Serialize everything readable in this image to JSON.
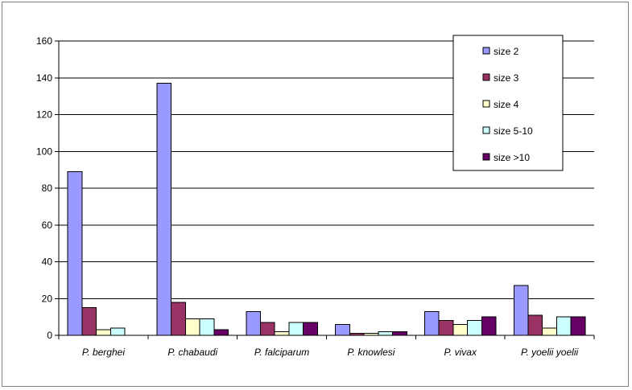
{
  "chart_data": {
    "type": "bar",
    "categories": [
      "P. berghei",
      "P. chabaudi",
      "P. falciparum",
      "P. knowlesi",
      "P. vivax",
      "P. yoelii yoelii"
    ],
    "series": [
      {
        "name": "size 2",
        "color": "#9999ff",
        "values": [
          89,
          137,
          13,
          6,
          13,
          27
        ]
      },
      {
        "name": "size 3",
        "color": "#993366",
        "values": [
          15,
          18,
          7,
          1,
          8,
          11
        ]
      },
      {
        "name": "size 4",
        "color": "#ffffcc",
        "values": [
          3,
          9,
          2,
          1,
          6,
          4
        ]
      },
      {
        "name": "size 5-10",
        "color": "#ccffff",
        "values": [
          4,
          9,
          7,
          2,
          8,
          10
        ]
      },
      {
        "name": "size >10",
        "color": "#660066",
        "values": [
          0,
          3,
          7,
          2,
          10,
          10
        ]
      }
    ],
    "ylim": [
      0,
      160
    ],
    "yticks": [
      0,
      20,
      40,
      60,
      80,
      100,
      120,
      140,
      160
    ],
    "grid": true,
    "legend_position": "top-right"
  }
}
